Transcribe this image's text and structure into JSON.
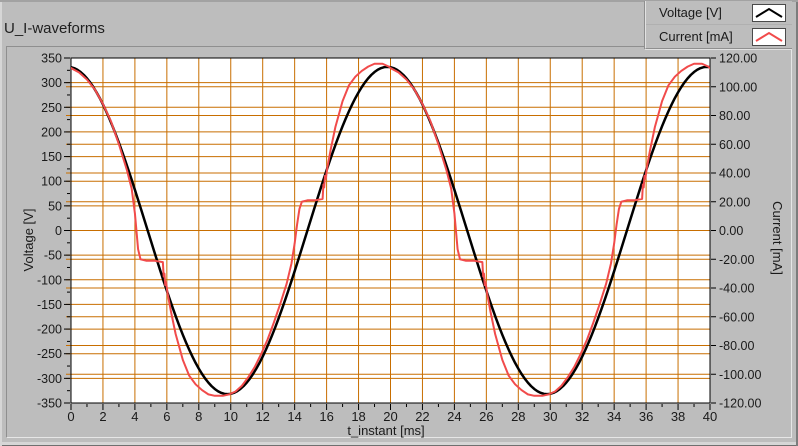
{
  "header": {
    "title": "U_I-waveforms"
  },
  "legend": {
    "items": [
      {
        "label": "Voltage [V]",
        "color": "#000000",
        "sample_icon": "line-caret"
      },
      {
        "label": "Current [mA]",
        "color": "#f14b4b",
        "sample_icon": "line-caret"
      }
    ]
  },
  "colors": {
    "panel_bg": "#bdbdbd",
    "plot_bg": "#ffffff",
    "grid": "#c86e00",
    "plot_border": "#000000",
    "axis_text": "#1a1a1a",
    "voltage_series": "#000000",
    "current_series": "#f14b4b"
  },
  "axes": {
    "left": {
      "title": "Voltage [V]",
      "tick_values": [
        350,
        300,
        250,
        200,
        150,
        100,
        50,
        0,
        -50,
        -100,
        -150,
        -200,
        -250,
        -300,
        -350
      ],
      "tick_labels": [
        "350",
        "300",
        "250",
        "200",
        "150",
        "100",
        "50",
        "0",
        "-50",
        "-100",
        "-150",
        "-200",
        "-250",
        "-300",
        "-350"
      ],
      "minor_tick_values": [
        325,
        275,
        225,
        175,
        125,
        75,
        25,
        -25,
        -75,
        -125,
        -175,
        -225,
        -275,
        -325
      ]
    },
    "right": {
      "title": "Current [mA]",
      "tick_values": [
        120,
        100,
        80,
        60,
        40,
        20,
        0,
        -20,
        -40,
        -60,
        -80,
        -100,
        -120
      ],
      "tick_labels": [
        "120.00",
        "100.00",
        "80.00",
        "60.00",
        "40.00",
        "20.00",
        "0.00",
        "-20.00",
        "-40.00",
        "-60.00",
        "-80.00",
        "-100.00",
        "-120.00"
      ]
    },
    "bottom": {
      "title": "t_instant [ms]",
      "tick_values": [
        0,
        2,
        4,
        6,
        8,
        10,
        12,
        14,
        16,
        18,
        20,
        22,
        24,
        26,
        28,
        30,
        32,
        34,
        36,
        38,
        40
      ],
      "tick_labels": [
        "0",
        "2",
        "4",
        "6",
        "8",
        "10",
        "12",
        "14",
        "16",
        "18",
        "20",
        "22",
        "24",
        "26",
        "28",
        "30",
        "32",
        "34",
        "36",
        "38",
        "40"
      ],
      "minor_tick_values": [
        1,
        3,
        5,
        7,
        9,
        11,
        13,
        15,
        17,
        19,
        21,
        23,
        25,
        27,
        29,
        31,
        33,
        35,
        37,
        39
      ]
    }
  },
  "chart_data": {
    "type": "line",
    "title": "U_I-waveforms",
    "xlabel": "t_instant [ms]",
    "ylabel_left": "Voltage [V]",
    "ylabel_right": "Current [mA]",
    "x_range_ms": [
      0,
      40
    ],
    "left_axis_range_V": [
      -350,
      350
    ],
    "right_axis_range_mA": [
      -120,
      120
    ],
    "grid": {
      "on": true,
      "vertical_every_ms": 2,
      "left_every_V": 50,
      "right_every_mA": 20
    },
    "legend_position": "top-right",
    "series": [
      {
        "name": "Voltage [V]",
        "axis": "left",
        "color": "#000000",
        "shape": "sine",
        "amplitude_V": 332,
        "period_ms": 20,
        "peak_at_ms": 19.8,
        "sample_step_ms": 0.2
      },
      {
        "name": "Current [mA]",
        "axis": "right",
        "color": "#f14b4b",
        "shape": "sampled",
        "period_ms": 20,
        "periods": 2,
        "points_one_period_t_ms_mA": [
          [
            0,
            113
          ],
          [
            0.5,
            110
          ],
          [
            1,
            105
          ],
          [
            1.5,
            98
          ],
          [
            2,
            88
          ],
          [
            2.5,
            76
          ],
          [
            3,
            60
          ],
          [
            3.5,
            42
          ],
          [
            3.8,
            29
          ],
          [
            4,
            12
          ],
          [
            4.2,
            -13
          ],
          [
            4.35,
            -20
          ],
          [
            4.7,
            -21
          ],
          [
            5.2,
            -21
          ],
          [
            5.75,
            -22
          ],
          [
            5.8,
            -32
          ],
          [
            5.85,
            -30
          ],
          [
            5.9,
            -38
          ],
          [
            5.95,
            -36
          ],
          [
            6.05,
            -44
          ],
          [
            6.25,
            -56
          ],
          [
            6.55,
            -72
          ],
          [
            7,
            -90
          ],
          [
            7.4,
            -101
          ],
          [
            7.8,
            -107
          ],
          [
            8.2,
            -111
          ],
          [
            8.6,
            -114
          ],
          [
            9,
            -115
          ],
          [
            9.5,
            -115
          ],
          [
            9.9,
            -114
          ],
          [
            10.3,
            -112
          ],
          [
            10.7,
            -108
          ],
          [
            11.1,
            -102
          ],
          [
            11.5,
            -95
          ],
          [
            11.9,
            -86
          ],
          [
            12.3,
            -76
          ],
          [
            12.7,
            -64
          ],
          [
            13.1,
            -51
          ],
          [
            13.5,
            -37
          ],
          [
            13.8,
            -23
          ],
          [
            14,
            -9
          ],
          [
            14.15,
            4
          ],
          [
            14.3,
            15
          ],
          [
            14.45,
            20
          ],
          [
            14.8,
            21
          ],
          [
            15.3,
            21
          ],
          [
            15.75,
            22
          ],
          [
            15.8,
            32
          ],
          [
            15.85,
            30
          ],
          [
            15.9,
            38
          ],
          [
            15.95,
            36
          ],
          [
            16.05,
            44
          ],
          [
            16.25,
            56
          ],
          [
            16.55,
            72
          ],
          [
            17,
            90
          ],
          [
            17.4,
            101
          ],
          [
            17.8,
            107
          ],
          [
            18.2,
            111
          ],
          [
            18.6,
            114
          ],
          [
            19,
            116
          ],
          [
            19.5,
            116
          ],
          [
            19.9,
            114
          ],
          [
            20,
            113
          ]
        ]
      }
    ]
  }
}
